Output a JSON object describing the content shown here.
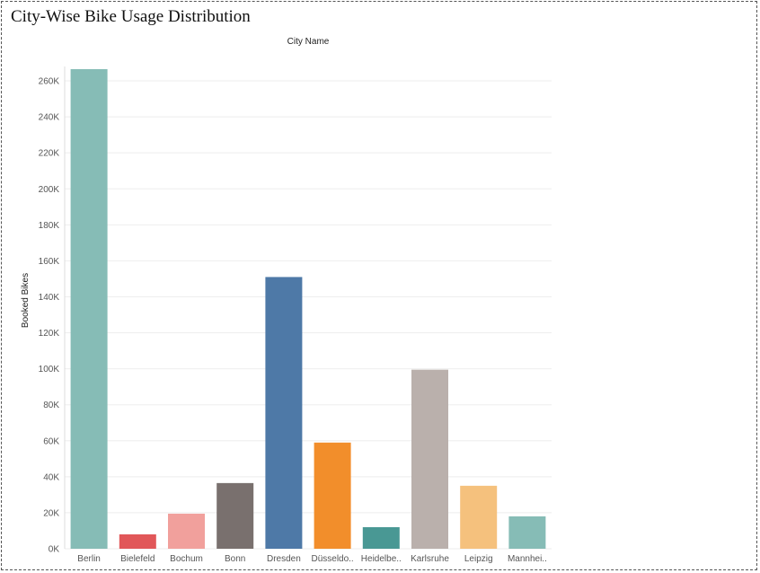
{
  "title": "City-Wise Bike Usage Distribution",
  "chart_data": {
    "type": "bar",
    "column_header": "City Name",
    "ylabel": "Booked Bikes",
    "xlabel": "",
    "ylim": [
      0,
      268000
    ],
    "y_ticks": [
      0,
      20000,
      40000,
      60000,
      80000,
      100000,
      120000,
      140000,
      160000,
      180000,
      200000,
      220000,
      240000,
      260000
    ],
    "y_tick_labels": [
      "0K",
      "20K",
      "40K",
      "60K",
      "80K",
      "100K",
      "120K",
      "140K",
      "160K",
      "180K",
      "200K",
      "220K",
      "240K",
      "260K"
    ],
    "grid": true,
    "categories": [
      "Berlin",
      "Bielefeld",
      "Bochum",
      "Bonn",
      "Dresden",
      "Düsseldo..",
      "Heidelbe..",
      "Karlsruhe",
      "Leipzig",
      "Mannhei.."
    ],
    "values": [
      266500,
      8000,
      19500,
      36500,
      151000,
      59000,
      12000,
      99500,
      35000,
      18000
    ],
    "colors": [
      "#86bcb6",
      "#e15759",
      "#f1a09c",
      "#79706e",
      "#4e79a7",
      "#f28e2b",
      "#499894",
      "#bab0ac",
      "#f5c17d",
      "#86bcb6"
    ]
  }
}
